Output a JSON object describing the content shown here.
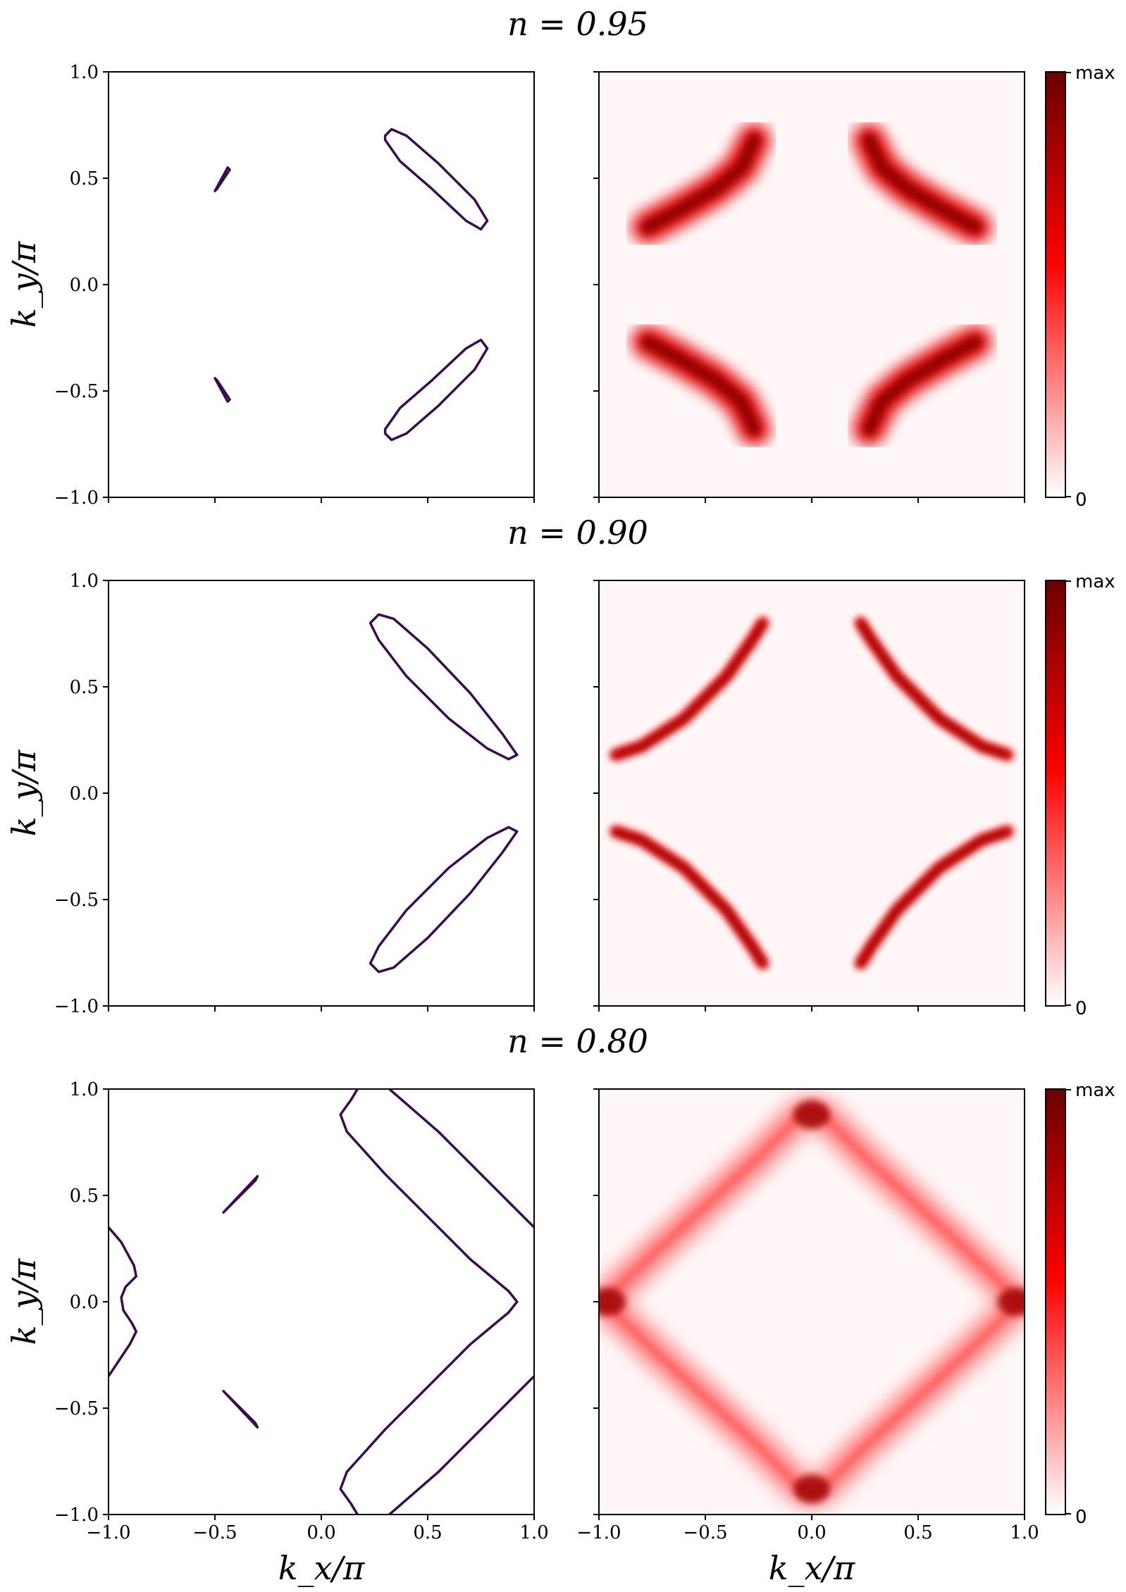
{
  "colors": {
    "contour": "#3b0a4f",
    "heat_low": "#ffffff",
    "heat_mid": "#ff0000",
    "heat_high": "#6b0000",
    "axes": "#000000"
  },
  "axis_labels": {
    "x": "k_x/π",
    "y": "k_y/π"
  },
  "colorbar": {
    "max_label": "max",
    "min_label": "0"
  },
  "chart_data": [
    {
      "type": "line",
      "panel": "fermi-contour",
      "title": "n = 0.95",
      "xlabel": "",
      "ylabel": "k_y/π",
      "xlim": [
        -1.0,
        1.0
      ],
      "ylim": [
        -1.0,
        1.0
      ],
      "xticks": [
        "−1.0",
        "−0.5",
        "0.0",
        "0.5",
        "1.0"
      ],
      "yticks": [
        "−1.0",
        "−0.5",
        "0.0",
        "0.5",
        "1.0"
      ],
      "series": [
        {
          "points": [
            [
              -0.44,
              0.55
            ],
            [
              -0.5,
              0.44
            ],
            [
              -0.49,
              0.45
            ],
            [
              -0.43,
              0.54
            ],
            [
              -0.44,
              0.55
            ]
          ]
        },
        {
          "points": [
            [
              -0.44,
              -0.55
            ],
            [
              -0.5,
              -0.44
            ],
            [
              -0.49,
              -0.45
            ],
            [
              -0.43,
              -0.54
            ],
            [
              -0.44,
              -0.55
            ]
          ]
        },
        {
          "points": [
            [
              0.3,
              0.7
            ],
            [
              0.33,
              0.73
            ],
            [
              0.4,
              0.7
            ],
            [
              0.55,
              0.57
            ],
            [
              0.72,
              0.4
            ],
            [
              0.78,
              0.3
            ],
            [
              0.75,
              0.26
            ],
            [
              0.68,
              0.3
            ],
            [
              0.52,
              0.45
            ],
            [
              0.37,
              0.58
            ],
            [
              0.3,
              0.68
            ],
            [
              0.3,
              0.7
            ]
          ]
        },
        {
          "points": [
            [
              0.3,
              -0.7
            ],
            [
              0.33,
              -0.73
            ],
            [
              0.4,
              -0.7
            ],
            [
              0.55,
              -0.57
            ],
            [
              0.72,
              -0.4
            ],
            [
              0.78,
              -0.3
            ],
            [
              0.75,
              -0.26
            ],
            [
              0.68,
              -0.3
            ],
            [
              0.52,
              -0.45
            ],
            [
              0.37,
              -0.58
            ],
            [
              0.3,
              -0.68
            ],
            [
              0.3,
              -0.7
            ]
          ]
        }
      ]
    },
    {
      "type": "heatmap",
      "panel": "spectral-weight",
      "xlim": [
        -1.0,
        1.0
      ],
      "ylim": [
        -1.0,
        1.0
      ],
      "xticks": [
        "−1.0",
        "−0.5",
        "0.0",
        "0.5",
        "1.0"
      ],
      "colorbar": [
        "0",
        "max"
      ],
      "arcs": [
        {
          "points": [
            [
              -0.77,
              0.27
            ],
            [
              -0.62,
              0.35
            ],
            [
              -0.45,
              0.45
            ],
            [
              -0.33,
              0.55
            ],
            [
              -0.27,
              0.68
            ]
          ],
          "intensity": 0.85
        },
        {
          "points": [
            [
              0.77,
              0.27
            ],
            [
              0.62,
              0.35
            ],
            [
              0.45,
              0.45
            ],
            [
              0.33,
              0.55
            ],
            [
              0.27,
              0.68
            ]
          ],
          "intensity": 0.85
        },
        {
          "points": [
            [
              -0.77,
              -0.27
            ],
            [
              -0.62,
              -0.35
            ],
            [
              -0.45,
              -0.45
            ],
            [
              -0.33,
              -0.55
            ],
            [
              -0.27,
              -0.68
            ]
          ],
          "intensity": 0.85
        },
        {
          "points": [
            [
              0.77,
              -0.27
            ],
            [
              0.62,
              -0.35
            ],
            [
              0.45,
              -0.45
            ],
            [
              0.33,
              -0.55
            ],
            [
              0.27,
              -0.68
            ]
          ],
          "intensity": 0.85
        }
      ]
    },
    {
      "type": "line",
      "panel": "fermi-contour",
      "title": "n = 0.90",
      "xlabel": "",
      "ylabel": "k_y/π",
      "xlim": [
        -1.0,
        1.0
      ],
      "ylim": [
        -1.0,
        1.0
      ],
      "xticks": [
        "−1.0",
        "−0.5",
        "0.0",
        "0.5",
        "1.0"
      ],
      "yticks": [
        "−1.0",
        "−0.5",
        "0.0",
        "0.5",
        "1.0"
      ],
      "series": [
        {
          "points": [
            [
              0.23,
              0.8
            ],
            [
              0.27,
              0.84
            ],
            [
              0.34,
              0.82
            ],
            [
              0.5,
              0.68
            ],
            [
              0.7,
              0.47
            ],
            [
              0.85,
              0.28
            ],
            [
              0.92,
              0.18
            ],
            [
              0.88,
              0.16
            ],
            [
              0.78,
              0.21
            ],
            [
              0.6,
              0.35
            ],
            [
              0.4,
              0.55
            ],
            [
              0.27,
              0.72
            ],
            [
              0.23,
              0.8
            ]
          ]
        },
        {
          "points": [
            [
              0.23,
              -0.8
            ],
            [
              0.27,
              -0.84
            ],
            [
              0.34,
              -0.82
            ],
            [
              0.5,
              -0.68
            ],
            [
              0.7,
              -0.47
            ],
            [
              0.85,
              -0.28
            ],
            [
              0.92,
              -0.18
            ],
            [
              0.88,
              -0.16
            ],
            [
              0.78,
              -0.21
            ],
            [
              0.6,
              -0.35
            ],
            [
              0.4,
              -0.55
            ],
            [
              0.27,
              -0.72
            ],
            [
              0.23,
              -0.8
            ]
          ]
        }
      ]
    },
    {
      "type": "heatmap",
      "panel": "spectral-weight",
      "xlim": [
        -1.0,
        1.0
      ],
      "ylim": [
        -1.0,
        1.0
      ],
      "xticks": [
        "−1.0",
        "−0.5",
        "0.0",
        "0.5",
        "1.0"
      ],
      "colorbar": [
        "0",
        "max"
      ],
      "arcs": [
        {
          "points": [
            [
              -0.92,
              0.18
            ],
            [
              -0.8,
              0.22
            ],
            [
              -0.6,
              0.35
            ],
            [
              -0.4,
              0.55
            ],
            [
              -0.28,
              0.72
            ],
            [
              -0.23,
              0.8
            ]
          ],
          "intensity": 0.95
        },
        {
          "points": [
            [
              0.92,
              0.18
            ],
            [
              0.8,
              0.22
            ],
            [
              0.6,
              0.35
            ],
            [
              0.4,
              0.55
            ],
            [
              0.28,
              0.72
            ],
            [
              0.23,
              0.8
            ]
          ],
          "intensity": 0.95
        },
        {
          "points": [
            [
              -0.92,
              -0.18
            ],
            [
              -0.8,
              -0.22
            ],
            [
              -0.6,
              -0.35
            ],
            [
              -0.4,
              -0.55
            ],
            [
              -0.28,
              -0.72
            ],
            [
              -0.23,
              -0.8
            ]
          ],
          "intensity": 0.95
        },
        {
          "points": [
            [
              0.92,
              -0.18
            ],
            [
              0.8,
              -0.22
            ],
            [
              0.6,
              -0.35
            ],
            [
              0.4,
              -0.55
            ],
            [
              0.28,
              -0.72
            ],
            [
              0.23,
              -0.8
            ]
          ],
          "intensity": 0.95
        }
      ]
    },
    {
      "type": "line",
      "panel": "fermi-contour",
      "title": "n = 0.80",
      "xlabel": "k_x/π",
      "ylabel": "k_y/π",
      "xlim": [
        -1.0,
        1.0
      ],
      "ylim": [
        -1.0,
        1.0
      ],
      "xticks": [
        "−1.0",
        "−0.5",
        "0.0",
        "0.5",
        "1.0"
      ],
      "yticks": [
        "−1.0",
        "−0.5",
        "0.0",
        "0.5",
        "1.0"
      ],
      "series": [
        {
          "points": [
            [
              -0.46,
              0.42
            ],
            [
              -0.3,
              0.59
            ],
            [
              -0.31,
              0.57
            ],
            [
              -0.45,
              0.43
            ],
            [
              -0.46,
              0.42
            ]
          ]
        },
        {
          "points": [
            [
              -0.46,
              -0.42
            ],
            [
              -0.3,
              -0.59
            ],
            [
              -0.31,
              -0.57
            ],
            [
              -0.45,
              -0.43
            ],
            [
              -0.46,
              -0.42
            ]
          ]
        },
        {
          "points": [
            [
              -1.0,
              0.35
            ],
            [
              -0.94,
              0.28
            ],
            [
              -0.88,
              0.17
            ],
            [
              -0.87,
              0.12
            ],
            [
              -0.92,
              0.07
            ],
            [
              -0.94,
              0.02
            ],
            [
              -0.93,
              -0.04
            ],
            [
              -0.89,
              -0.1
            ],
            [
              -0.87,
              -0.14
            ],
            [
              -0.9,
              -0.2
            ],
            [
              -0.96,
              -0.29
            ],
            [
              -1.0,
              -0.35
            ]
          ]
        },
        {
          "points": [
            [
              0.17,
              1.0
            ],
            [
              0.14,
              0.95
            ],
            [
              0.09,
              0.88
            ],
            [
              0.12,
              0.8
            ],
            [
              0.3,
              0.6
            ],
            [
              0.5,
              0.4
            ],
            [
              0.7,
              0.2
            ],
            [
              0.88,
              0.05
            ],
            [
              0.92,
              0.0
            ],
            [
              0.88,
              -0.05
            ],
            [
              0.7,
              -0.2
            ],
            [
              0.5,
              -0.4
            ],
            [
              0.3,
              -0.6
            ],
            [
              0.12,
              -0.8
            ],
            [
              0.09,
              -0.88
            ],
            [
              0.14,
              -0.95
            ],
            [
              0.17,
              -1.0
            ]
          ]
        },
        {
          "points": [
            [
              0.32,
              1.0
            ],
            [
              0.4,
              0.93
            ],
            [
              0.55,
              0.8
            ],
            [
              0.75,
              0.6
            ],
            [
              0.9,
              0.45
            ],
            [
              1.0,
              0.35
            ]
          ]
        },
        {
          "points": [
            [
              0.32,
              -1.0
            ],
            [
              0.4,
              -0.93
            ],
            [
              0.55,
              -0.8
            ],
            [
              0.75,
              -0.6
            ],
            [
              0.9,
              -0.45
            ],
            [
              1.0,
              -0.35
            ]
          ]
        }
      ]
    },
    {
      "type": "heatmap",
      "panel": "spectral-weight",
      "xlabel": "k_x/π",
      "xlim": [
        -1.0,
        1.0
      ],
      "ylim": [
        -1.0,
        1.0
      ],
      "xticks": [
        "−1.0",
        "−0.5",
        "0.0",
        "0.5",
        "1.0"
      ],
      "colorbar": [
        "0",
        "max"
      ],
      "arcs": [
        {
          "points": [
            [
              -0.98,
              0.0
            ],
            [
              -0.75,
              0.22
            ],
            [
              -0.5,
              0.45
            ],
            [
              -0.25,
              0.68
            ],
            [
              -0.05,
              0.88
            ],
            [
              0.0,
              0.9
            ],
            [
              0.05,
              0.88
            ],
            [
              0.25,
              0.68
            ],
            [
              0.5,
              0.45
            ],
            [
              0.75,
              0.22
            ],
            [
              0.98,
              0.0
            ],
            [
              0.75,
              -0.22
            ],
            [
              0.5,
              -0.45
            ],
            [
              0.25,
              -0.68
            ],
            [
              0.05,
              -0.88
            ],
            [
              0.0,
              -0.9
            ],
            [
              -0.05,
              -0.88
            ],
            [
              -0.25,
              -0.68
            ],
            [
              -0.5,
              -0.45
            ],
            [
              -0.75,
              -0.22
            ],
            [
              -0.98,
              0.0
            ]
          ],
          "intensity": 0.45
        }
      ],
      "hotspots": [
        [
          -0.96,
          0.0
        ],
        [
          0.96,
          0.0
        ],
        [
          0.0,
          0.88
        ],
        [
          0.0,
          -0.88
        ]
      ]
    }
  ]
}
